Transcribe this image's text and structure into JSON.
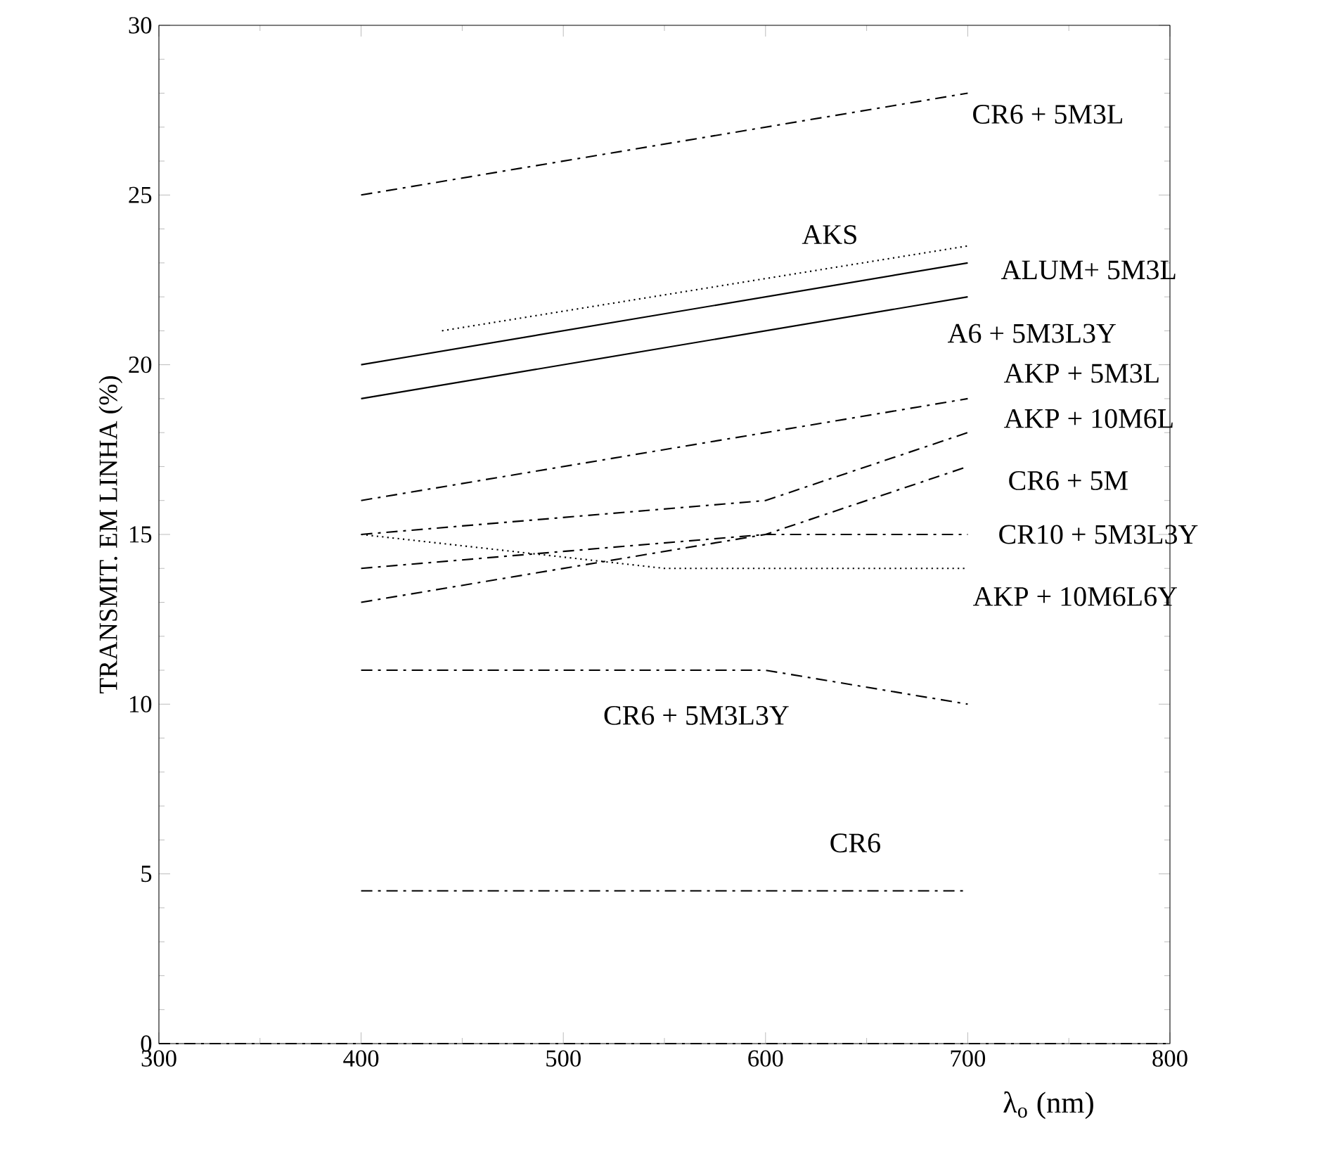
{
  "chart_data": {
    "type": "line",
    "xlabel": "λ$_{o}$ (nm)",
    "ylabel": "TRANSMIT. EM LINHA (%)",
    "xlim": [
      300,
      800
    ],
    "ylim": [
      0,
      30
    ],
    "xticks": [
      300,
      400,
      500,
      600,
      700,
      800
    ],
    "yticks": [
      0,
      5,
      10,
      15,
      20,
      25,
      30
    ],
    "grid": false,
    "ref_lines": [
      {
        "axis": "y",
        "value": 0,
        "color": "#000000",
        "line_style": "dashed"
      }
    ],
    "series": [
      {
        "name": "CR6 + 5M3L",
        "color": "#000000",
        "line_style": "dashed",
        "x": [
          400,
          700
        ],
        "values": [
          25,
          28
        ]
      },
      {
        "name": "AKS",
        "color": "#000000",
        "line_style": "dotted",
        "x": [
          440,
          700
        ],
        "values": [
          21,
          23.5
        ]
      },
      {
        "name": "ALUM+ 5M3L",
        "color": "#000000",
        "line_style": "solid",
        "x": [
          400,
          700
        ],
        "values": [
          20,
          23
        ]
      },
      {
        "name": "A6 + 5M3L3Y",
        "color": "#000000",
        "line_style": "solid",
        "x": [
          400,
          700
        ],
        "values": [
          19,
          22
        ]
      },
      {
        "name": "AKP + 5M3L",
        "color": "#000000",
        "line_style": "dashed",
        "x": [
          400,
          700
        ],
        "values": [
          16,
          19
        ]
      },
      {
        "name": "AKP + 10M6L",
        "color": "#000000",
        "line_style": "dashed",
        "x": [
          400,
          600,
          700
        ],
        "values": [
          15,
          16,
          18
        ]
      },
      {
        "name": "CR6 + 5M",
        "color": "#000000",
        "line_style": "dashed",
        "x": [
          400,
          600,
          700
        ],
        "values": [
          13,
          15,
          17
        ]
      },
      {
        "name": "CR10 + 5M3L3Y",
        "color": "#000000",
        "line_style": "dashed",
        "x": [
          400,
          600,
          700
        ],
        "values": [
          14,
          15,
          15
        ]
      },
      {
        "name": "AKP + 10M6L6Y",
        "color": "#000000",
        "line_style": "dotted",
        "x": [
          400,
          550,
          700
        ],
        "values": [
          15,
          14,
          14
        ]
      },
      {
        "name": "CR6 + 5M3L3Y",
        "color": "#000000",
        "line_style": "dashed",
        "x": [
          400,
          600,
          700
        ],
        "values": [
          11,
          11,
          10
        ]
      },
      {
        "name": "CR6",
        "color": "#000000",
        "line_style": "dashed",
        "x": [
          400,
          700
        ],
        "values": [
          4.5,
          4.5
        ]
      }
    ]
  }
}
